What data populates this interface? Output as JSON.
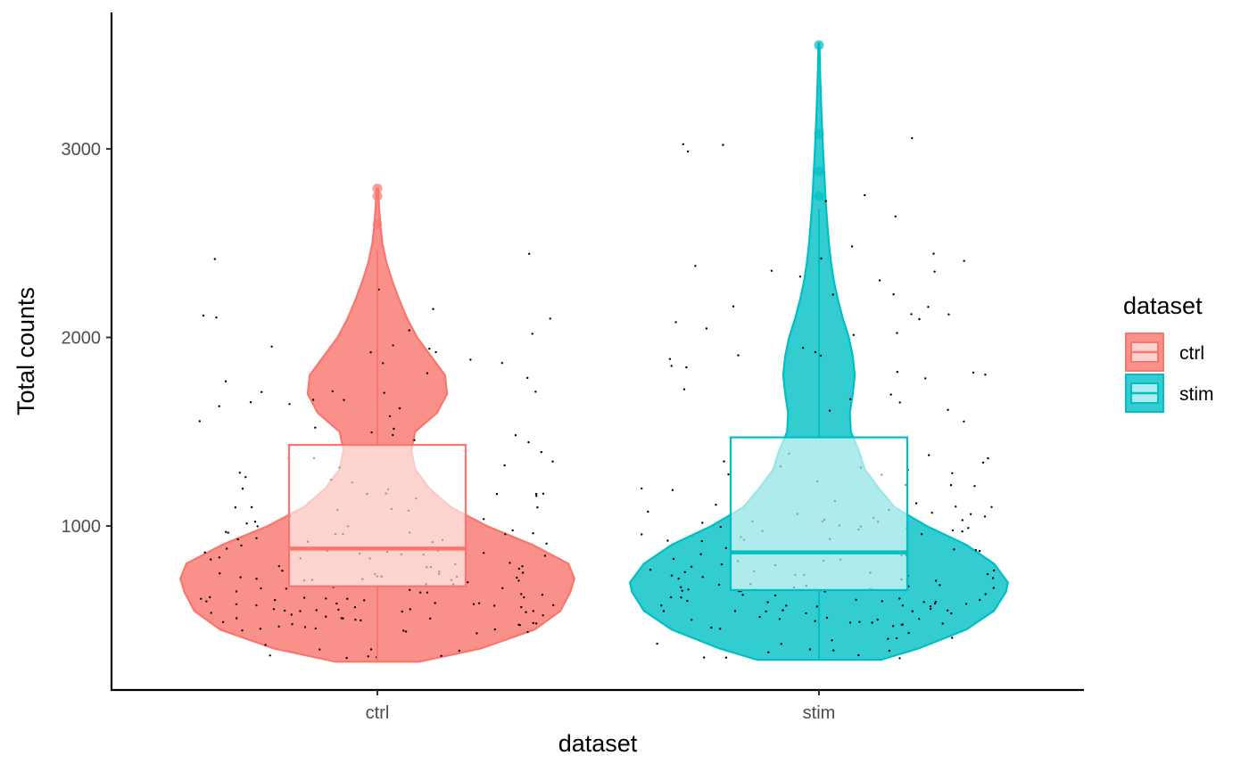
{
  "chart_data": {
    "type": "violin",
    "xlabel": "dataset",
    "ylabel": "Total counts",
    "categories": [
      "ctrl",
      "stim"
    ],
    "ylim": [
      150,
      3700
    ],
    "yticks": [
      1000,
      2000,
      3000
    ],
    "grid": false,
    "legend": {
      "title": "dataset",
      "position": "right",
      "entries": [
        "ctrl",
        "stim"
      ]
    },
    "colors": {
      "ctrl": "#F8766D",
      "stim": "#00BFC4"
    },
    "series": [
      {
        "name": "ctrl",
        "min": 280,
        "q1": 680,
        "median": 880,
        "q3": 1430,
        "max": 2460,
        "outliers": [
          2600,
          2750,
          2790
        ],
        "density": [
          [
            280,
            0.21
          ],
          [
            350,
            0.52
          ],
          [
            450,
            0.79
          ],
          [
            550,
            0.92
          ],
          [
            650,
            0.97
          ],
          [
            720,
            0.99
          ],
          [
            800,
            0.96
          ],
          [
            900,
            0.78
          ],
          [
            1000,
            0.55
          ],
          [
            1100,
            0.37
          ],
          [
            1200,
            0.26
          ],
          [
            1300,
            0.19
          ],
          [
            1400,
            0.17
          ],
          [
            1500,
            0.19
          ],
          [
            1600,
            0.3
          ],
          [
            1700,
            0.35
          ],
          [
            1800,
            0.34
          ],
          [
            1900,
            0.27
          ],
          [
            2000,
            0.2
          ],
          [
            2100,
            0.15
          ],
          [
            2200,
            0.11
          ],
          [
            2300,
            0.075
          ],
          [
            2400,
            0.045
          ],
          [
            2500,
            0.025
          ],
          [
            2600,
            0.015
          ],
          [
            2700,
            0.008
          ],
          [
            2790,
            0.003
          ]
        ]
      },
      {
        "name": "stim",
        "min": 290,
        "q1": 660,
        "median": 860,
        "q3": 1470,
        "max": 2680,
        "outliers": [
          2750,
          2880,
          3080,
          3550
        ],
        "density": [
          [
            290,
            0.31
          ],
          [
            350,
            0.5
          ],
          [
            450,
            0.74
          ],
          [
            550,
            0.88
          ],
          [
            650,
            0.94
          ],
          [
            700,
            0.95
          ],
          [
            800,
            0.88
          ],
          [
            900,
            0.74
          ],
          [
            1000,
            0.54
          ],
          [
            1100,
            0.38
          ],
          [
            1200,
            0.3
          ],
          [
            1300,
            0.23
          ],
          [
            1400,
            0.2
          ],
          [
            1500,
            0.16
          ],
          [
            1600,
            0.155
          ],
          [
            1700,
            0.17
          ],
          [
            1800,
            0.18
          ],
          [
            1900,
            0.17
          ],
          [
            2000,
            0.15
          ],
          [
            2100,
            0.12
          ],
          [
            2200,
            0.095
          ],
          [
            2300,
            0.075
          ],
          [
            2400,
            0.06
          ],
          [
            2500,
            0.05
          ],
          [
            2600,
            0.042
          ],
          [
            2700,
            0.035
          ],
          [
            2800,
            0.03
          ],
          [
            2900,
            0.025
          ],
          [
            3000,
            0.02
          ],
          [
            3100,
            0.016
          ],
          [
            3200,
            0.012
          ],
          [
            3300,
            0.009
          ],
          [
            3400,
            0.006
          ],
          [
            3500,
            0.004
          ],
          [
            3560,
            0.002
          ]
        ]
      }
    ]
  }
}
